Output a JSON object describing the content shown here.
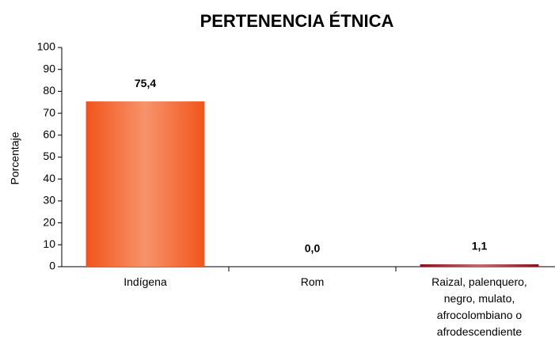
{
  "chart_data": {
    "type": "bar",
    "title": "PERTENENCIA ÉTNICA",
    "y_label": "Porcentaje",
    "categories": [
      "Indígena",
      "Rom",
      "Raizal, palenquero, negro, mulato, afrocolombiano o afrodescendiente"
    ],
    "values": [
      75.4,
      0.0,
      1.1
    ],
    "value_labels": [
      "75,4",
      "0,0",
      "1,1"
    ],
    "colors": [
      "#f2541b",
      "#f2541b",
      "#8b1111"
    ],
    "ylim": [
      0,
      100
    ],
    "yticks": [
      0,
      10,
      20,
      30,
      40,
      50,
      60,
      70,
      80,
      90,
      100
    ],
    "grid": false
  }
}
